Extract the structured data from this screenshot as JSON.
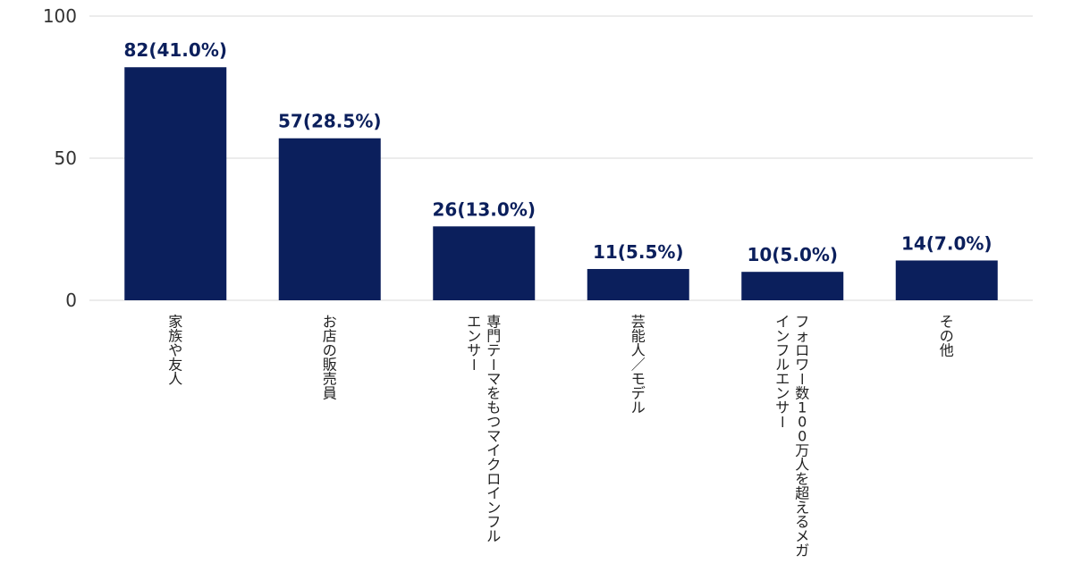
{
  "chart_data": {
    "type": "bar",
    "title": "",
    "xlabel": "",
    "ylabel": "",
    "ylim": [
      0,
      100
    ],
    "yticks": [
      0,
      50,
      100
    ],
    "grid": true,
    "categories": [
      "家族や友人",
      "お店の販売員",
      "専門テーマをもつマイクロインフルエンサー",
      "芸能人／モデル",
      "フォロワー数100万人を超えるメガインフルエンサー",
      "その他"
    ],
    "category_lines": [
      [
        "家族や友人"
      ],
      [
        "お店の販売員"
      ],
      [
        "専門テーマをもつマイクロインフル",
        "エンサー"
      ],
      [
        "芸能人／モデル"
      ],
      [
        "フォロワー数100万人を超えるメガ",
        "インフルエンサー"
      ],
      [
        "その他"
      ]
    ],
    "values": [
      82,
      57,
      26,
      11,
      10,
      14
    ],
    "data_labels": [
      "82(41.0%)",
      "57(28.5%)",
      "26(13.0%)",
      "11(5.5%)",
      "10(5.0%)",
      "14(7.0%)"
    ],
    "colors": {
      "bar": "#0b1f5c",
      "label": "#0b1f5c",
      "grid": "#d9d9d9"
    }
  }
}
